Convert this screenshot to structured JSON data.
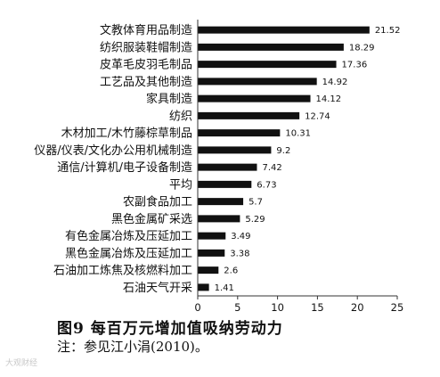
{
  "chart_data": {
    "type": "bar",
    "orientation": "horizontal",
    "categories": [
      "文教体育用品制造",
      "纺织服装鞋帽制造",
      "皮革毛皮羽毛制品",
      "工艺品及其他制造",
      "家具制造",
      "纺织",
      "木材加工/木竹藤棕草制品",
      "仪器/仪表/文化办公用机械制造",
      "通信/计算机/电子设备制造",
      "平均",
      "农副食品加工",
      "黑色金属矿采选",
      "有色金属冶炼及压延加工",
      "黑色金属冶炼及压延加工",
      "石油加工炼焦及核燃料加工",
      "石油天气开采"
    ],
    "values": [
      21.52,
      18.29,
      17.36,
      14.92,
      14.12,
      12.74,
      10.31,
      9.2,
      7.42,
      6.73,
      5.7,
      5.29,
      3.49,
      3.38,
      2.6,
      1.41
    ],
    "value_labels": [
      "21.52",
      "18.29",
      "17.36",
      "14.92",
      "14.12",
      "12.74",
      "10.31",
      "9.2",
      "7.42",
      "6.73",
      "5.7",
      "5.29",
      "3.49",
      "3.38",
      "2.6",
      "1.41"
    ],
    "xlim": [
      0,
      25
    ],
    "xticks": [
      0,
      5,
      10,
      15,
      20,
      25
    ],
    "xtick_labels": [
      "0",
      "5",
      "10",
      "15",
      "20",
      "25"
    ],
    "grid": false,
    "bar_color": "#111111"
  },
  "caption": "图9  每百万元增加值吸纳劳动力",
  "note": "注：参见江小涓(2010)。",
  "watermark": "大观财经"
}
